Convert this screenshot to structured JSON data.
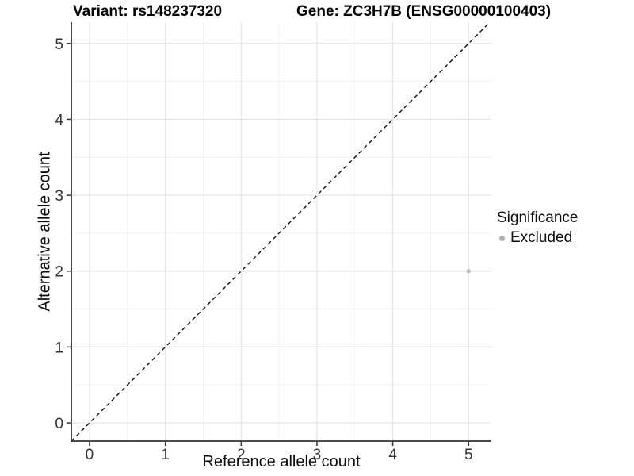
{
  "title": {
    "variant": "Variant: rs148237320",
    "gene": "Gene: ZC3H7B (ENSG00000100403)"
  },
  "axes": {
    "x_label": "Reference allele count",
    "y_label": "Alternative allele count"
  },
  "legend": {
    "title": "Significance",
    "items": [
      {
        "label": "Excluded",
        "color": "#b3b3b3"
      }
    ]
  },
  "colors": {
    "background": "#ffffff",
    "axis_line": "#333333",
    "grid_major": "#e4e4e4",
    "grid_minor": "#f1f1f1",
    "reference_line": "#000000",
    "point": "#b9b9b9"
  },
  "chart_data": {
    "type": "scatter",
    "title": "Variant: rs148237320   Gene: ZC3H7B (ENSG00000100403)",
    "xlabel": "Reference allele count",
    "ylabel": "Alternative allele count",
    "xlim": [
      -0.24,
      5.3
    ],
    "ylim": [
      -0.24,
      5.28
    ],
    "x_ticks": [
      0,
      1,
      2,
      3,
      4,
      5
    ],
    "y_ticks": [
      0,
      1,
      2,
      3,
      4,
      5
    ],
    "x_minor_ticks": [
      0.5,
      1.5,
      2.5,
      3.5,
      4.5
    ],
    "y_minor_ticks": [
      0.5,
      1.5,
      2.5,
      3.5,
      4.5
    ],
    "grid": "on",
    "legend_position": "right",
    "reference_line": {
      "type": "identity y=x",
      "style": "dashed",
      "color": "#000000"
    },
    "series": [
      {
        "name": "Excluded",
        "color": "#b9b9b9",
        "points": [
          {
            "x": 5,
            "y": 2
          }
        ]
      }
    ]
  }
}
